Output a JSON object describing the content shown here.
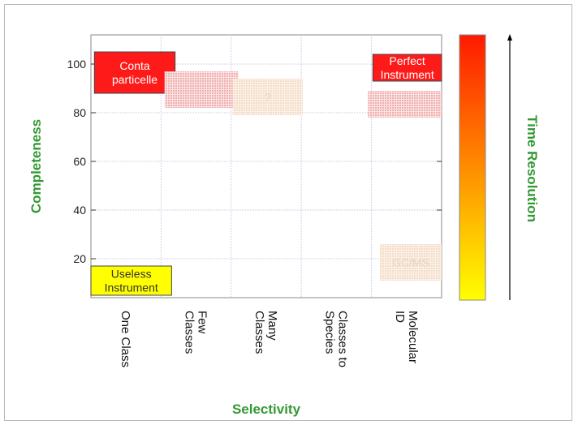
{
  "chart_data": {
    "type": "scatter",
    "xlabel": "Selectivity",
    "ylabel": "Completeness",
    "categories": [
      "One Class",
      "Few Classes",
      "Many Classes",
      "Classes to Species",
      "Molecular ID"
    ],
    "category_lines": [
      [
        "One Class"
      ],
      [
        "Few",
        "Classes"
      ],
      [
        "Many",
        "Classes"
      ],
      [
        "Classes to",
        "Species"
      ],
      [
        "Molecular",
        "ID"
      ]
    ],
    "x_range": [
      0,
      5
    ],
    "ylim": [
      4,
      112
    ],
    "yticks": [
      20,
      40,
      60,
      80,
      100
    ],
    "grid": true,
    "regions": [
      {
        "key": "conta",
        "label_lines": [
          "Conta",
          "particelle"
        ],
        "x": [
          0.05,
          1.2
        ],
        "y": [
          88,
          105
        ],
        "color": "#ff1a1a",
        "text_color": "#ffffff",
        "style": "solid"
      },
      {
        "key": "few",
        "label_lines": [],
        "x": [
          1.05,
          2.1
        ],
        "y": [
          82,
          97
        ],
        "color": "#f08080",
        "style": "dotted"
      },
      {
        "key": "mid",
        "label_lines": [
          "?"
        ],
        "x": [
          2.02,
          3.02
        ],
        "y": [
          79,
          94
        ],
        "color": "#eac097",
        "text_color": "#e0d8c8",
        "style": "dotted"
      },
      {
        "key": "perfect",
        "label_lines": [
          "Perfect",
          "Instrument"
        ],
        "x": [
          4.02,
          5.0
        ],
        "y": [
          93,
          104
        ],
        "color": "#ff1a1a",
        "text_color": "#ffffff",
        "style": "solid"
      },
      {
        "key": "mol",
        "label_lines": [],
        "x": [
          3.95,
          5.0
        ],
        "y": [
          78,
          89
        ],
        "color": "#f08080",
        "style": "dotted"
      },
      {
        "key": "gcms",
        "label_lines": [
          "GC/MS"
        ],
        "x": [
          4.12,
          5.0
        ],
        "y": [
          11,
          26
        ],
        "color": "#eac097",
        "text_color": "#e0d8c8",
        "style": "dotted"
      },
      {
        "key": "useless",
        "label_lines": [
          "Useless",
          "Instrument"
        ],
        "x": [
          0.0,
          1.15
        ],
        "y": [
          5,
          17
        ],
        "color": "#ffff00",
        "text_color": "#333333",
        "style": "solid"
      }
    ],
    "side_label": "Time Resolution",
    "side_gradient": {
      "top": "#ff1a00",
      "bottom": "#ffff00"
    },
    "label_color": "#339933"
  }
}
